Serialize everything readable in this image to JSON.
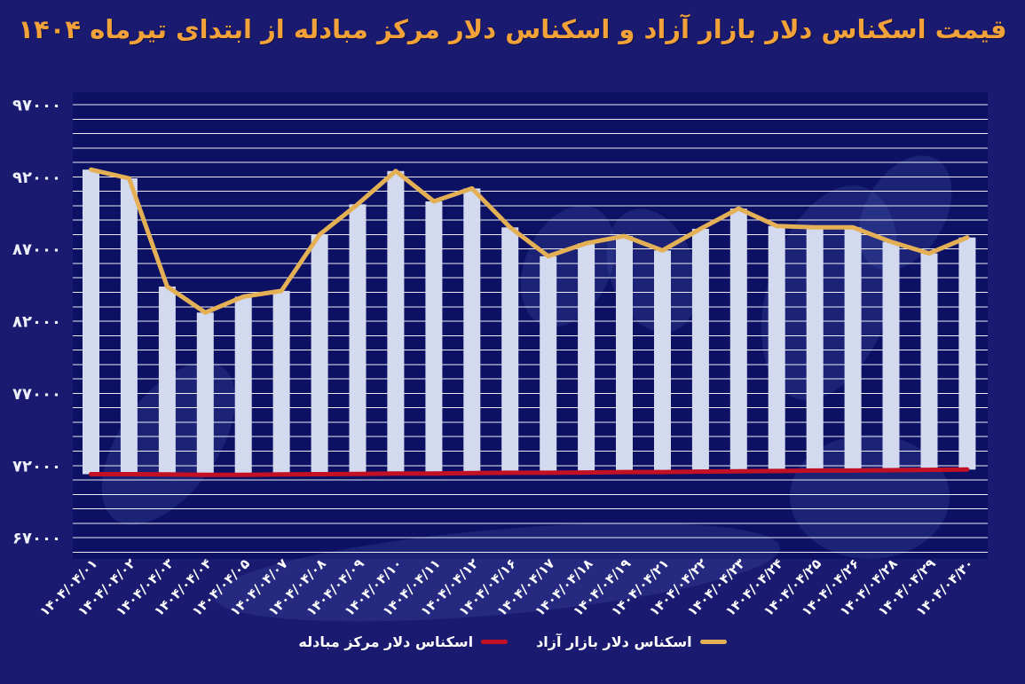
{
  "title": "قیمت اسکناس دلار بازار آزاد و اسکناس دلار مرکز مبادله از ابتدای تیرماه ۱۴۰۴",
  "legend": {
    "azad": "اسکناس دلار بازار آزاد",
    "mobadele": "اسکناس دلار مرکز مبادله"
  },
  "colors": {
    "background": "#1a1a70",
    "plot_background": "#0d1164",
    "bar": "#d3d9ee",
    "azad_line": "#e3b055",
    "mobadele_line": "#c21025",
    "gridline": "#ffffff",
    "axis_text": "#ffffff",
    "y_axis_text": "#edf0fa",
    "title": "#f2a238"
  },
  "chart_data": {
    "type": "bar",
    "note_type": "bars with overlaid line series; bars span from mobadele value up to azad value",
    "title": "قیمت اسکناس دلار بازار آزاد و اسکناس دلار مرکز مبادله از ابتدای تیرماه ۱۴۰۴",
    "categories": [
      "۱۴۰۴/۰۴/۰۱",
      "۱۴۰۴/۰۴/۰۲",
      "۱۴۰۴/۰۴/۰۳",
      "۱۴۰۴/۰۴/۰۴",
      "۱۴۰۴/۰۴/۰۵",
      "۱۴۰۴/۰۴/۰۷",
      "۱۴۰۴/۰۴/۰۸",
      "۱۴۰۴/۰۴/۰۹",
      "۱۴۰۴/۰۴/۱۰",
      "۱۴۰۴/۰۴/۱۱",
      "۱۴۰۴/۰۴/۱۲",
      "۱۴۰۴/۰۴/۱۶",
      "۱۴۰۴/۰۴/۱۷",
      "۱۴۰۴/۰۴/۱۸",
      "۱۴۰۴/۰۴/۱۹",
      "۱۴۰۴/۰۴/۲۱",
      "۱۴۰۴/۰۴/۲۲",
      "۱۴۰۴/۰۴/۲۳",
      "۱۴۰۴/۰۴/۲۴",
      "۱۴۰۴/۰۴/۲۵",
      "۱۴۰۴/۰۴/۲۶",
      "۱۴۰۴/۰۴/۲۸",
      "۱۴۰۴/۰۴/۲۹",
      "۱۴۰۴/۰۴/۳۰"
    ],
    "series": [
      {
        "name": "اسکناس دلار بازار آزاد",
        "render": "bar+line",
        "color": "#e3b055",
        "values": [
          92500,
          91900,
          84400,
          82600,
          83700,
          84100,
          88000,
          90100,
          92400,
          90300,
          91200,
          88500,
          86500,
          87400,
          87900,
          86900,
          88400,
          89800,
          88600,
          88500,
          88500,
          87500,
          86700,
          87800
        ]
      },
      {
        "name": "اسکناس دلار مرکز مبادله",
        "render": "line",
        "color": "#c21025",
        "values": [
          71400,
          71400,
          71380,
          71350,
          71350,
          71380,
          71400,
          71420,
          71450,
          71450,
          71480,
          71500,
          71500,
          71520,
          71550,
          71550,
          71580,
          71600,
          71620,
          71650,
          71650,
          71680,
          71700,
          71720
        ]
      }
    ],
    "y_ticks": [
      {
        "label": "۹۷۰۰۰",
        "value": 97000
      },
      {
        "label": "۹۲۰۰۰",
        "value": 92000
      },
      {
        "label": "۸۷۰۰۰",
        "value": 87000
      },
      {
        "label": "۸۲۰۰۰",
        "value": 82000
      },
      {
        "label": "۷۷۰۰۰",
        "value": 77000
      },
      {
        "label": "۷۲۰۰۰",
        "value": 72000
      },
      {
        "label": "۶۷۰۰۰",
        "value": 67000
      }
    ],
    "ylim": [
      66000,
      97000
    ],
    "grid": "horizontal, every 1000",
    "legend_position": "bottom center",
    "x_label_rotation": -45
  }
}
